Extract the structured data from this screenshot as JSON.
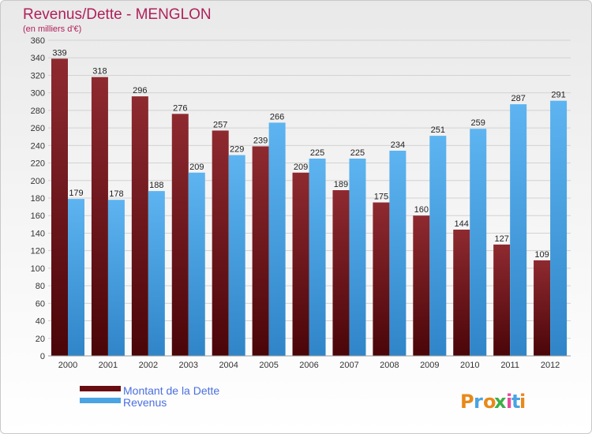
{
  "chart_data": {
    "type": "bar",
    "title": "Revenus/Dette - MENGLON",
    "subtitle": "(en milliers d'€)",
    "categories": [
      "2000",
      "2001",
      "2002",
      "2003",
      "2004",
      "2005",
      "2006",
      "2007",
      "2008",
      "2009",
      "2010",
      "2011",
      "2012"
    ],
    "series": [
      {
        "name": "Montant de la Dette",
        "values": [
          339,
          318,
          296,
          276,
          257,
          239,
          209,
          189,
          175,
          160,
          144,
          127,
          109
        ],
        "color": "#7a1a1f"
      },
      {
        "name": "Revenus",
        "values": [
          179,
          178,
          188,
          209,
          229,
          266,
          225,
          225,
          234,
          251,
          259,
          287,
          291
        ],
        "color": "#4aa3e3"
      }
    ],
    "ylim": [
      0,
      360
    ],
    "yticks": [
      0,
      20,
      40,
      60,
      80,
      100,
      120,
      140,
      160,
      180,
      200,
      220,
      240,
      260,
      280,
      300,
      320,
      340,
      360
    ],
    "grid": true,
    "legend_position": "bottom-left"
  },
  "logo": {
    "text": "Proxiti"
  }
}
